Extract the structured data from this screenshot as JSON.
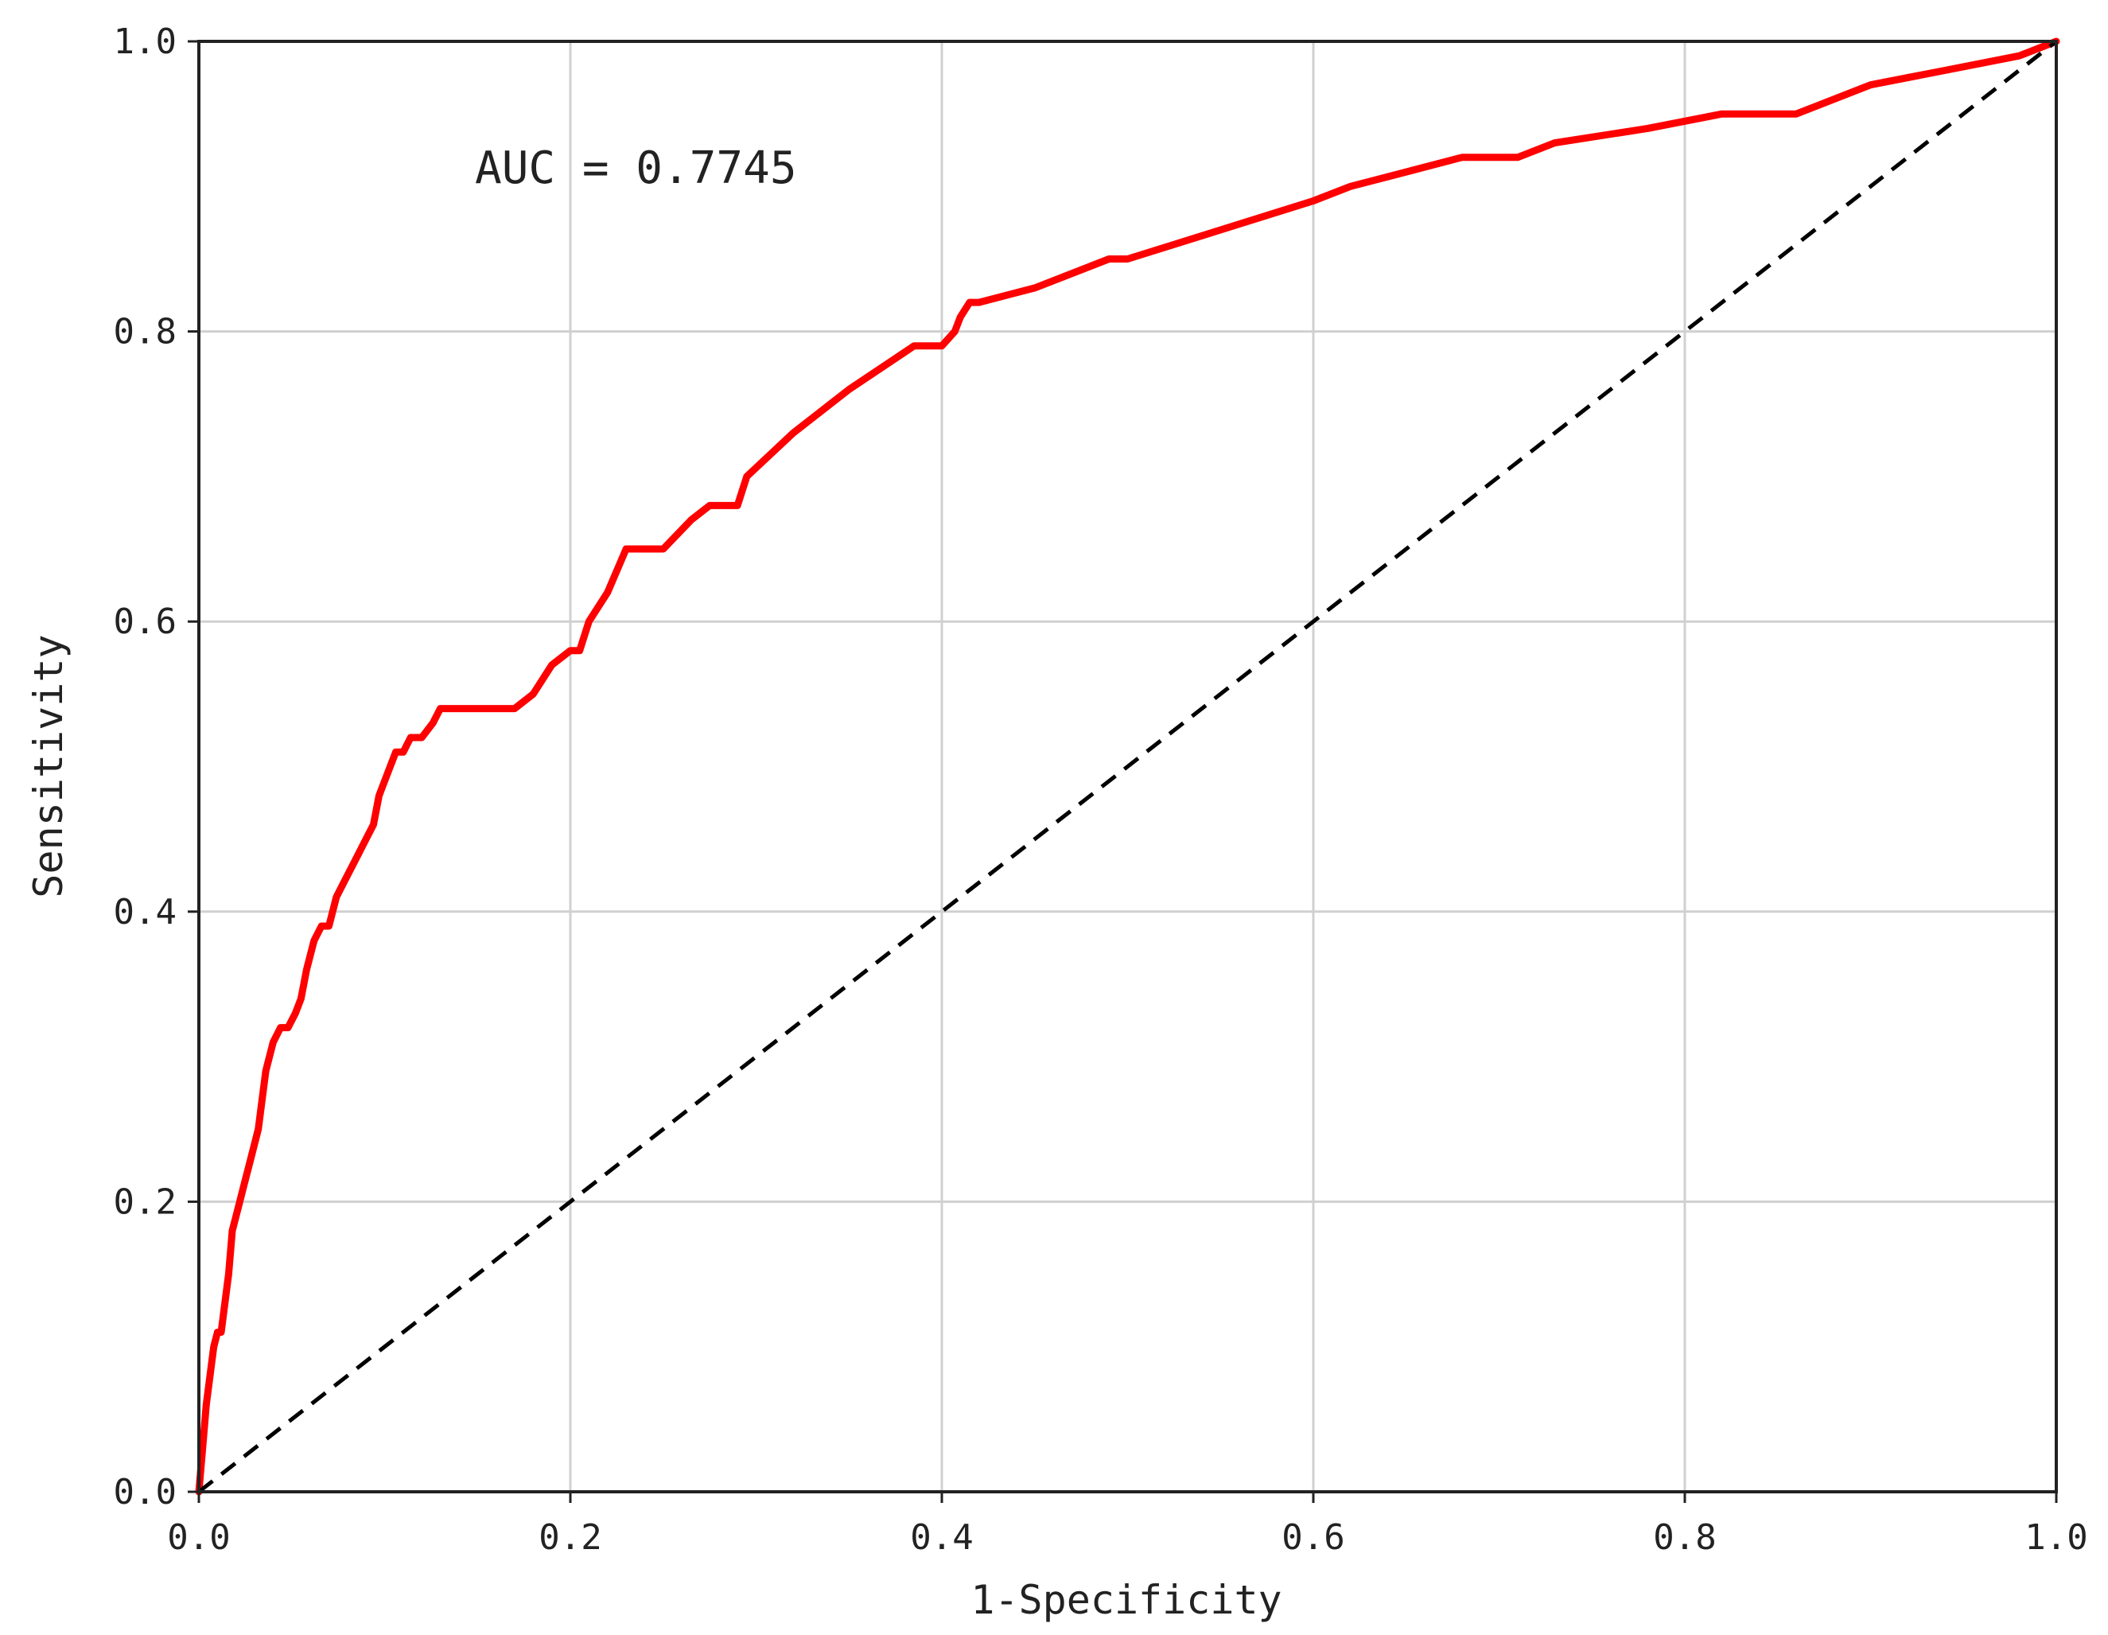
{
  "chart_data": {
    "type": "line",
    "xlabel": "1-Specificity",
    "ylabel": "Sensitivity",
    "xlim": [
      0,
      1
    ],
    "ylim": [
      0,
      1
    ],
    "x_ticks": [
      "0.0",
      "0.2",
      "0.4",
      "0.6",
      "0.8",
      "1.0"
    ],
    "y_ticks": [
      "0.0",
      "0.2",
      "0.4",
      "0.6",
      "0.8",
      "1.0"
    ],
    "grid": true,
    "annotation": "AUC = 0.7745",
    "series": [
      {
        "color": "#ff0000",
        "style": "solid",
        "x": [
          0,
          0.002,
          0.004,
          0.006,
          0.008,
          0.01,
          0.012,
          0.014,
          0.016,
          0.018,
          0.02,
          0.022,
          0.024,
          0.028,
          0.032,
          0.036,
          0.04,
          0.044,
          0.048,
          0.052,
          0.055,
          0.058,
          0.062,
          0.066,
          0.07,
          0.074,
          0.078,
          0.082,
          0.086,
          0.09,
          0.094,
          0.097,
          0.1,
          0.103,
          0.106,
          0.11,
          0.114,
          0.12,
          0.126,
          0.13,
          0.14,
          0.15,
          0.17,
          0.18,
          0.185,
          0.19,
          0.2,
          0.205,
          0.21,
          0.22,
          0.23,
          0.25,
          0.265,
          0.275,
          0.29,
          0.295,
          0.32,
          0.35,
          0.385,
          0.4,
          0.407,
          0.41,
          0.415,
          0.42,
          0.45,
          0.49,
          0.5,
          0.55,
          0.6,
          0.62,
          0.65,
          0.68,
          0.71,
          0.73,
          0.78,
          0.82,
          0.86,
          0.9,
          0.94,
          0.98,
          1.0
        ],
        "y": [
          0,
          0.03,
          0.06,
          0.08,
          0.1,
          0.11,
          0.11,
          0.13,
          0.15,
          0.18,
          0.19,
          0.2,
          0.21,
          0.23,
          0.25,
          0.29,
          0.31,
          0.32,
          0.32,
          0.33,
          0.34,
          0.36,
          0.38,
          0.39,
          0.39,
          0.41,
          0.42,
          0.43,
          0.44,
          0.45,
          0.46,
          0.48,
          0.49,
          0.5,
          0.51,
          0.51,
          0.52,
          0.52,
          0.53,
          0.54,
          0.54,
          0.54,
          0.54,
          0.55,
          0.56,
          0.57,
          0.58,
          0.58,
          0.6,
          0.62,
          0.65,
          0.65,
          0.67,
          0.68,
          0.68,
          0.7,
          0.73,
          0.76,
          0.79,
          0.79,
          0.8,
          0.81,
          0.82,
          0.82,
          0.83,
          0.85,
          0.85,
          0.87,
          0.89,
          0.9,
          0.91,
          0.92,
          0.92,
          0.93,
          0.94,
          0.95,
          0.95,
          0.97,
          0.98,
          0.99,
          1.0
        ]
      },
      {
        "color": "#000000",
        "style": "dashed",
        "x": [
          0,
          1
        ],
        "y": [
          0,
          1
        ]
      }
    ]
  }
}
